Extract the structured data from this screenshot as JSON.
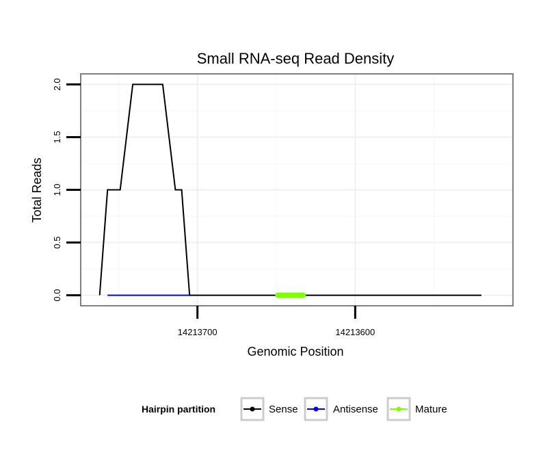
{
  "chart_data": {
    "type": "line",
    "title": "Small RNA-seq Read Density",
    "xlabel": "Genomic Position",
    "ylabel": "Total Reads",
    "x_reversed": true,
    "xlim": [
      14213774,
      14213500
    ],
    "ylim": [
      -0.1,
      2.1
    ],
    "x_ticks": [
      14213700,
      14213600
    ],
    "x_tick_labels": [
      "14213700",
      "14213600"
    ],
    "y_ticks": [
      0,
      0.5,
      1,
      1.5,
      2
    ],
    "y_tick_labels": [
      "0.0",
      "0.5",
      "1.0",
      "1.5",
      "2.0"
    ],
    "grid": true,
    "legend": {
      "title": "Hairpin partition",
      "placement": "bottom",
      "entries": [
        {
          "label": "Sense",
          "color": "#000000"
        },
        {
          "label": "Antisense",
          "color": "#0000ff"
        },
        {
          "label": "Mature",
          "color": "#80ff00"
        }
      ]
    },
    "series": [
      {
        "name": "Sense",
        "color": "#000000",
        "step": true,
        "x": [
          14213762,
          14213757,
          14213749,
          14213741,
          14213722,
          14213714,
          14213710,
          14213705,
          14213520
        ],
        "values": [
          0,
          1,
          1,
          2,
          2,
          1,
          1,
          0,
          0
        ]
      },
      {
        "name": "Antisense",
        "color": "#0000ff",
        "step": false,
        "x": [
          14213757,
          14213705
        ],
        "values": [
          0,
          0
        ]
      },
      {
        "name": "Mature",
        "color": "#80ff00",
        "step": false,
        "x": [
          14213649,
          14213633
        ],
        "values": [
          0,
          0
        ]
      }
    ]
  }
}
